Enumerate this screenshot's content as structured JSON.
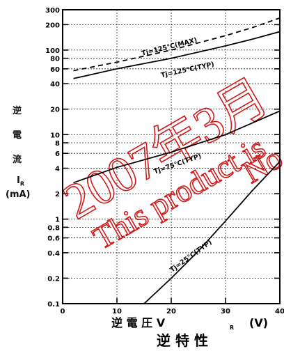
{
  "chart_data": {
    "type": "line",
    "title": "逆 特 性",
    "xlabel": "逆 電 圧 V",
    "xlabel_sub": "R",
    "xunit": "(V)",
    "ylabel_lines": [
      "逆",
      "電",
      "流",
      "I",
      "(mA)"
    ],
    "ylabel_sub": "R",
    "xlim": [
      0,
      40
    ],
    "ylim": [
      0.1,
      300
    ],
    "yscale": "log",
    "grid": true,
    "x_ticks": [
      0,
      10,
      20,
      30,
      40
    ],
    "y_ticks": [
      0.1,
      0.2,
      0.4,
      0.6,
      0.8,
      1,
      2,
      4,
      6,
      8,
      10,
      20,
      40,
      60,
      80,
      100,
      200,
      300
    ],
    "series": [
      {
        "name": "Tj=125℃(MAX)",
        "style": "dashed",
        "x": [
          2,
          10,
          20,
          30,
          35,
          40
        ],
        "y": [
          57,
          72,
          100,
          148,
          185,
          240
        ]
      },
      {
        "name": "Tj=125℃(TYP)",
        "style": "solid",
        "x": [
          2,
          10,
          20,
          30,
          35,
          40
        ],
        "y": [
          46,
          60,
          80,
          112,
          135,
          165
        ]
      },
      {
        "name": "Tj=75℃(TYP)",
        "style": "solid",
        "x": [
          2,
          10,
          20,
          30,
          40
        ],
        "y": [
          2.7,
          4.1,
          6.2,
          10,
          19
        ]
      },
      {
        "name": "Tj=25℃(TYP)",
        "style": "solid",
        "x": [
          15,
          20,
          25,
          30,
          35,
          40
        ],
        "y": [
          0.1,
          0.2,
          0.42,
          0.95,
          2.2,
          4.8
        ]
      }
    ],
    "watermark": [
      "2007年3月",
      "This product is",
      "No"
    ]
  }
}
